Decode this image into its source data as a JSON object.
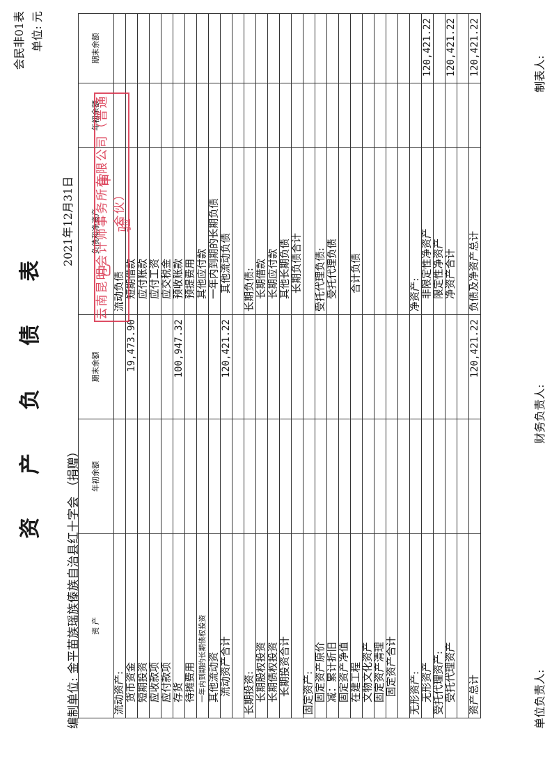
{
  "header": {
    "title": "资 产 负 债 表",
    "form_code": "会民非01表",
    "unit": "单位: 元",
    "date": "2021年12月31日",
    "org": "编制单位: 金平苗族瑶族傣族自治县红十字会 （捐赠）"
  },
  "table": {
    "col_headers": [
      "资 产",
      "年初余额",
      "期末余额",
      "负债和净资产",
      "年初余额",
      "期末余额"
    ],
    "rows": [
      [
        "流动资产:",
        "",
        "",
        "流动负债",
        "",
        ""
      ],
      [
        "货币资金",
        "",
        "19,473.90",
        "短期借款",
        "",
        ""
      ],
      [
        "短期投资",
        "",
        "",
        "应付账款",
        "",
        ""
      ],
      [
        "应收款项",
        "",
        "",
        "应付工资",
        "",
        ""
      ],
      [
        "应付款项",
        "",
        "",
        "应交税金",
        "",
        ""
      ],
      [
        "存货",
        "",
        "100,947.32",
        "预收账款",
        "",
        ""
      ],
      [
        "待摊费用",
        "",
        "",
        "预提费用",
        "",
        ""
      ],
      [
        "一年内到期的长期债权投资",
        "",
        "",
        "其他应付款",
        "",
        ""
      ],
      [
        "其他流动资",
        "",
        "",
        "一年内到期的长期负债",
        "",
        ""
      ],
      [
        "流动资产合计",
        "",
        "120,421.22",
        "其他流动负债",
        "",
        ""
      ],
      [
        "",
        "",
        "",
        "",
        "",
        ""
      ],
      [
        "长期投资:",
        "",
        "",
        "长期负债:",
        "",
        ""
      ],
      [
        "长期股权投资",
        "",
        "",
        "长期借款",
        "",
        ""
      ],
      [
        "长期债权投资",
        "",
        "",
        "长期应付款",
        "",
        ""
      ],
      [
        "长期投资合计",
        "",
        "",
        "其他长期负债",
        "",
        ""
      ],
      [
        "",
        "",
        "",
        "长期负债合计",
        "",
        ""
      ],
      [
        "固定资产:",
        "",
        "",
        "",
        "",
        ""
      ],
      [
        "固定资产原价",
        "",
        "",
        "受托代理负债:",
        "",
        ""
      ],
      [
        "减：累计折旧",
        "",
        "",
        "受托代理负债",
        "",
        ""
      ],
      [
        "固定资产净值",
        "",
        "",
        "",
        "",
        ""
      ],
      [
        "在建工程",
        "",
        "",
        "合计负债",
        "",
        ""
      ],
      [
        "文物文化资产",
        "",
        "",
        "",
        "",
        ""
      ],
      [
        "固定资产清理",
        "",
        "",
        "",
        "",
        ""
      ],
      [
        "固定资产合计",
        "",
        "",
        "",
        "",
        ""
      ],
      [
        "",
        "",
        "",
        "",
        "",
        ""
      ],
      [
        "无形资产:",
        "",
        "",
        "净资产:",
        "",
        ""
      ],
      [
        "无形资产",
        "",
        "",
        "非限定性净资产",
        "",
        "120,421.22"
      ],
      [
        "受托代理资产:",
        "",
        "",
        "限定性净资产",
        "",
        ""
      ],
      [
        "受托代理资产",
        "",
        "",
        "净资产合计",
        "",
        "120,421.22"
      ],
      [
        "",
        "",
        "",
        "",
        "",
        ""
      ],
      [
        "资产总计",
        "",
        "120,421.22",
        "负债及净资产总计",
        "",
        "120,421.22"
      ]
    ]
  },
  "footer": {
    "unit_head": "单位负责人:",
    "finance_head": "财务负责人:",
    "preparer": "制表人:"
  },
  "stamp": {
    "line1": "已 审 验",
    "line2": "云南昆明会计师事务所有限公司（普通合伙）"
  },
  "colors": {
    "stamp": "#d9304a",
    "ink": "#1a1a1a"
  }
}
